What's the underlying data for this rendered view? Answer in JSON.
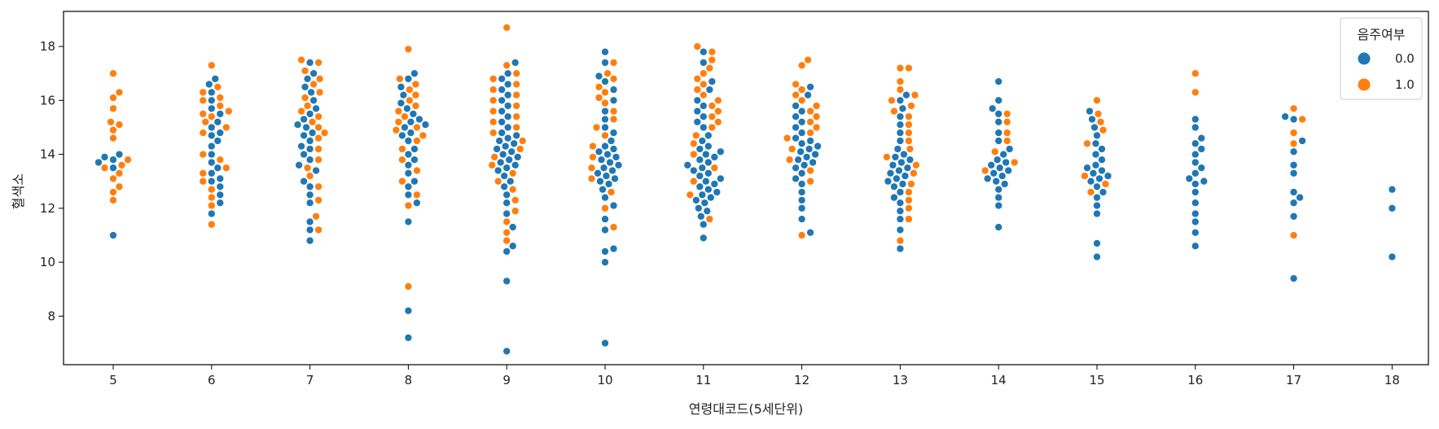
{
  "chart_data": {
    "type": "scatter",
    "subtype": "swarm",
    "title": "",
    "xlabel": "연령대코드(5세단위)",
    "ylabel": "혈색소",
    "categories": [
      "5",
      "6",
      "7",
      "8",
      "9",
      "10",
      "11",
      "12",
      "13",
      "14",
      "15",
      "16",
      "17",
      "18"
    ],
    "ylim": [
      6.2,
      19.3
    ],
    "yticks": [
      8,
      10,
      12,
      14,
      16,
      18
    ],
    "grid": false,
    "legend": {
      "title": "음주여부",
      "position": "top-right",
      "entries": [
        {
          "label": "0.0",
          "color": "#1f77b4"
        },
        {
          "label": "1.0",
          "color": "#ff7f0e"
        }
      ]
    },
    "series": [
      {
        "name": "0.0",
        "color": "#1f77b4",
        "values": [
          [
            11.0,
            13.9,
            13.8,
            13.7,
            13.5,
            14.0
          ],
          [
            11.8,
            12.2,
            12.5,
            12.8,
            13.0,
            13.1,
            13.3,
            13.5,
            13.7,
            14.0,
            14.3,
            14.5,
            14.7,
            14.8,
            15.0,
            15.2,
            15.5,
            15.7,
            16.0,
            16.3,
            16.6,
            16.8
          ],
          [
            10.8,
            11.2,
            11.5,
            12.2,
            12.5,
            12.8,
            13.0,
            13.4,
            13.6,
            13.8,
            14.0,
            14.2,
            14.3,
            14.5,
            14.7,
            14.8,
            15.0,
            15.1,
            15.3,
            15.5,
            15.7,
            16.0,
            16.3,
            16.5,
            16.8,
            17.0,
            17.4
          ],
          [
            7.2,
            8.2,
            11.5,
            12.2,
            12.5,
            12.8,
            13.0,
            13.3,
            13.6,
            13.8,
            14.0,
            14.2,
            14.5,
            14.7,
            14.8,
            15.0,
            15.1,
            15.2,
            15.3,
            15.5,
            15.7,
            15.9,
            16.2,
            16.5,
            16.8,
            17.0
          ],
          [
            6.7,
            9.3,
            10.4,
            10.6,
            11.3,
            11.8,
            12.2,
            12.5,
            12.8,
            13.0,
            13.2,
            13.4,
            13.5,
            13.6,
            13.7,
            13.8,
            13.9,
            14.0,
            14.1,
            14.2,
            14.3,
            14.4,
            14.5,
            14.6,
            14.7,
            14.8,
            15.0,
            15.2,
            15.4,
            15.6,
            15.8,
            16.0,
            16.2,
            16.4,
            16.6,
            16.8,
            17.0,
            17.4
          ],
          [
            7.0,
            10.0,
            10.4,
            10.5,
            11.2,
            11.6,
            12.1,
            12.4,
            12.7,
            12.9,
            13.0,
            13.1,
            13.2,
            13.3,
            13.4,
            13.5,
            13.6,
            13.7,
            13.8,
            13.9,
            14.0,
            14.1,
            14.2,
            14.3,
            14.5,
            14.8,
            15.0,
            15.3,
            15.6,
            16.0,
            16.4,
            16.7,
            16.9,
            17.4,
            17.8
          ],
          [
            10.9,
            11.4,
            11.7,
            11.9,
            12.0,
            12.2,
            12.3,
            12.4,
            12.5,
            12.6,
            12.7,
            12.8,
            12.9,
            13.0,
            13.1,
            13.2,
            13.3,
            13.4,
            13.5,
            13.6,
            13.7,
            13.8,
            13.9,
            14.0,
            14.1,
            14.2,
            14.3,
            14.5,
            14.7,
            15.0,
            15.2,
            15.4,
            15.6,
            15.8,
            16.0,
            16.4,
            16.7,
            17.4,
            17.8
          ],
          [
            11.1,
            11.6,
            12.0,
            12.3,
            12.6,
            12.9,
            13.1,
            13.3,
            13.5,
            13.6,
            13.7,
            13.8,
            13.9,
            14.0,
            14.1,
            14.2,
            14.3,
            14.4,
            14.5,
            14.6,
            14.8,
            15.0,
            15.2,
            15.4,
            15.6,
            15.8,
            16.2,
            16.5
          ],
          [
            10.5,
            11.2,
            11.6,
            11.9,
            12.2,
            12.4,
            12.6,
            12.8,
            12.9,
            13.0,
            13.1,
            13.2,
            13.3,
            13.4,
            13.5,
            13.6,
            13.7,
            13.8,
            13.9,
            14.0,
            14.2,
            14.5,
            14.8,
            15.1,
            15.4,
            15.7,
            16.0,
            16.2
          ],
          [
            11.3,
            12.1,
            12.4,
            12.7,
            12.9,
            13.0,
            13.1,
            13.2,
            13.3,
            13.4,
            13.5,
            13.6,
            13.7,
            13.8,
            14.0,
            14.2,
            14.5,
            14.8,
            15.2,
            15.5,
            15.7,
            16.0,
            16.7
          ],
          [
            10.2,
            10.7,
            11.8,
            12.1,
            12.4,
            12.6,
            12.8,
            13.0,
            13.1,
            13.2,
            13.3,
            13.4,
            13.5,
            13.6,
            13.8,
            14.0,
            14.2,
            14.4,
            14.7,
            15.0,
            15.3,
            15.6
          ],
          [
            10.6,
            11.1,
            11.5,
            11.8,
            12.2,
            12.6,
            12.9,
            13.0,
            13.1,
            13.3,
            13.5,
            13.7,
            14.0,
            14.2,
            14.4,
            14.6,
            15.0,
            15.3
          ],
          [
            9.4,
            11.7,
            12.2,
            12.4,
            12.6,
            13.3,
            13.6,
            14.1,
            14.5,
            15.3,
            15.4
          ],
          [
            10.2,
            12.0,
            12.7
          ]
        ]
      },
      {
        "name": "1.0",
        "color": "#ff7f0e",
        "values": [
          [
            12.3,
            12.6,
            12.8,
            13.1,
            13.3,
            13.5,
            13.6,
            13.8,
            14.6,
            14.9,
            15.1,
            15.2,
            15.7,
            16.1,
            16.3,
            17.0
          ],
          [
            11.4,
            12.1,
            12.4,
            12.7,
            13.0,
            13.3,
            13.5,
            13.8,
            14.0,
            14.8,
            15.0,
            15.2,
            15.4,
            15.5,
            15.6,
            15.8,
            16.0,
            16.1,
            16.3,
            16.5,
            17.3
          ],
          [
            11.2,
            11.7,
            12.3,
            12.8,
            13.2,
            13.5,
            13.8,
            14.2,
            14.6,
            14.8,
            15.0,
            15.2,
            15.4,
            15.6,
            15.8,
            16.1,
            16.3,
            16.6,
            16.8,
            17.1,
            17.4,
            17.5
          ],
          [
            9.1,
            12.1,
            12.5,
            13.0,
            13.4,
            13.8,
            14.2,
            14.5,
            14.7,
            14.9,
            15.0,
            15.2,
            15.4,
            15.6,
            15.8,
            16.0,
            16.2,
            16.4,
            16.6,
            16.8,
            17.9
          ],
          [
            10.8,
            11.1,
            11.5,
            11.9,
            12.3,
            12.7,
            13.0,
            13.3,
            13.6,
            13.9,
            14.2,
            14.5,
            14.8,
            15.0,
            15.2,
            15.4,
            15.6,
            15.8,
            16.0,
            16.2,
            16.4,
            16.6,
            16.8,
            17.0,
            17.3,
            18.7
          ],
          [
            11.3,
            12.0,
            12.6,
            13.1,
            13.5,
            13.9,
            14.3,
            14.7,
            15.0,
            15.3,
            15.6,
            15.9,
            16.1,
            16.3,
            16.5,
            16.8,
            17.0,
            17.4
          ],
          [
            11.6,
            12.5,
            13.0,
            13.5,
            14.0,
            14.4,
            14.7,
            15.0,
            15.2,
            15.4,
            15.6,
            15.8,
            16.0,
            16.2,
            16.4,
            16.6,
            16.8,
            17.0,
            17.2,
            17.5,
            17.8,
            18.0
          ],
          [
            11.0,
            13.0,
            13.4,
            13.8,
            14.2,
            14.6,
            14.8,
            15.0,
            15.2,
            15.4,
            15.6,
            15.8,
            16.0,
            16.2,
            16.4,
            16.6,
            17.3,
            17.5
          ],
          [
            10.8,
            11.6,
            12.0,
            12.3,
            12.6,
            12.9,
            13.3,
            13.6,
            13.9,
            14.2,
            14.5,
            14.8,
            15.1,
            15.4,
            15.6,
            15.8,
            16.0,
            16.2,
            16.4,
            16.7,
            17.2,
            17.2
          ],
          [
            13.4,
            13.7,
            14.1,
            14.5,
            14.8,
            15.2,
            15.5
          ],
          [
            12.6,
            12.9,
            13.2,
            14.4,
            14.9,
            15.2,
            15.5,
            16.0
          ],
          [
            16.3,
            17.0
          ],
          [
            11.0,
            14.4,
            14.8,
            15.3,
            15.7
          ],
          []
        ]
      }
    ]
  }
}
